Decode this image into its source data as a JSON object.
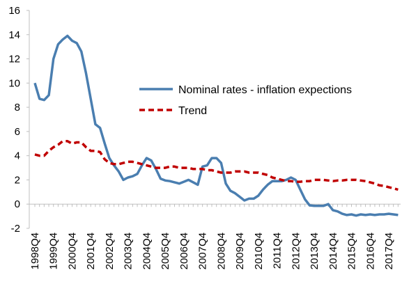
{
  "chart_data": {
    "type": "line",
    "categories": [
      "1998Q4",
      null,
      null,
      null,
      "1999Q4",
      null,
      null,
      null,
      "2000Q4",
      null,
      null,
      null,
      "2001Q4",
      null,
      null,
      null,
      "2002Q4",
      null,
      null,
      null,
      "2003Q4",
      null,
      null,
      null,
      "2004Q4",
      null,
      null,
      null,
      "2005Q4",
      null,
      null,
      null,
      "2006Q4",
      null,
      null,
      null,
      "2007Q4",
      null,
      null,
      null,
      "2008Q4",
      null,
      null,
      null,
      "2009Q4",
      null,
      null,
      null,
      "2010Q4",
      null,
      null,
      null,
      "2011Q4",
      null,
      null,
      null,
      "2012Q4",
      null,
      null,
      null,
      "2013Q4",
      null,
      null,
      null,
      "2014Q4",
      null,
      null,
      null,
      "2015Q4",
      null,
      null,
      null,
      "2016Q4",
      null,
      null,
      null,
      "2017Q4",
      null,
      null
    ],
    "series": [
      {
        "name": "Nominal rates - inflation expections",
        "color": "#4a7eb0",
        "dashed": false,
        "values": [
          10,
          8.7,
          8.6,
          9.0,
          12,
          13.2,
          13.6,
          13.9,
          13.5,
          13.3,
          12.6,
          10.8,
          8.7,
          6.6,
          6.3,
          5.0,
          3.8,
          3.2,
          2.7,
          2.0,
          2.2,
          2.3,
          2.5,
          3.2,
          3.8,
          3.6,
          2.9,
          2.1,
          1.95,
          1.9,
          1.8,
          1.7,
          1.85,
          2.0,
          1.8,
          1.6,
          3.1,
          3.2,
          3.8,
          3.8,
          3.4,
          1.7,
          1.1,
          0.9,
          0.6,
          0.3,
          0.45,
          0.45,
          0.7,
          1.2,
          1.6,
          1.9,
          1.9,
          1.9,
          2.0,
          2.2,
          2.0,
          1.2,
          0.4,
          -0.1,
          -0.15,
          -0.15,
          -0.15,
          0.0,
          -0.5,
          -0.6,
          -0.8,
          -0.9,
          -0.85,
          -0.95,
          -0.85,
          -0.9,
          -0.85,
          -0.9,
          -0.85,
          -0.85,
          -0.8,
          -0.85,
          -0.9
        ]
      },
      {
        "name": "Trend",
        "color": "#c00000",
        "dashed": true,
        "values": [
          4.1,
          4.0,
          4.0,
          4.4,
          4.7,
          4.9,
          5.2,
          5.2,
          5.0,
          5.1,
          5.1,
          4.7,
          4.4,
          4.4,
          4.3,
          3.7,
          3.4,
          3.3,
          3.3,
          3.4,
          3.5,
          3.5,
          3.4,
          3.3,
          3.2,
          3.1,
          3.0,
          3.0,
          3.0,
          3.1,
          3.1,
          3.0,
          3.0,
          3.0,
          2.9,
          2.9,
          2.9,
          2.8,
          2.8,
          2.7,
          2.6,
          2.6,
          2.6,
          2.7,
          2.7,
          2.7,
          2.6,
          2.6,
          2.6,
          2.5,
          2.4,
          2.2,
          2.1,
          2.0,
          1.9,
          1.9,
          1.85,
          1.85,
          1.9,
          1.9,
          2.0,
          2.0,
          2.0,
          1.95,
          1.9,
          1.95,
          1.95,
          2.0,
          2.0,
          2.0,
          1.95,
          1.9,
          1.8,
          1.7,
          1.55,
          1.5,
          1.4,
          1.3,
          1.2
        ]
      }
    ],
    "ylim": [
      -2,
      16
    ],
    "yticks": [
      -2,
      0,
      2,
      4,
      6,
      8,
      10,
      12,
      14,
      16
    ]
  }
}
